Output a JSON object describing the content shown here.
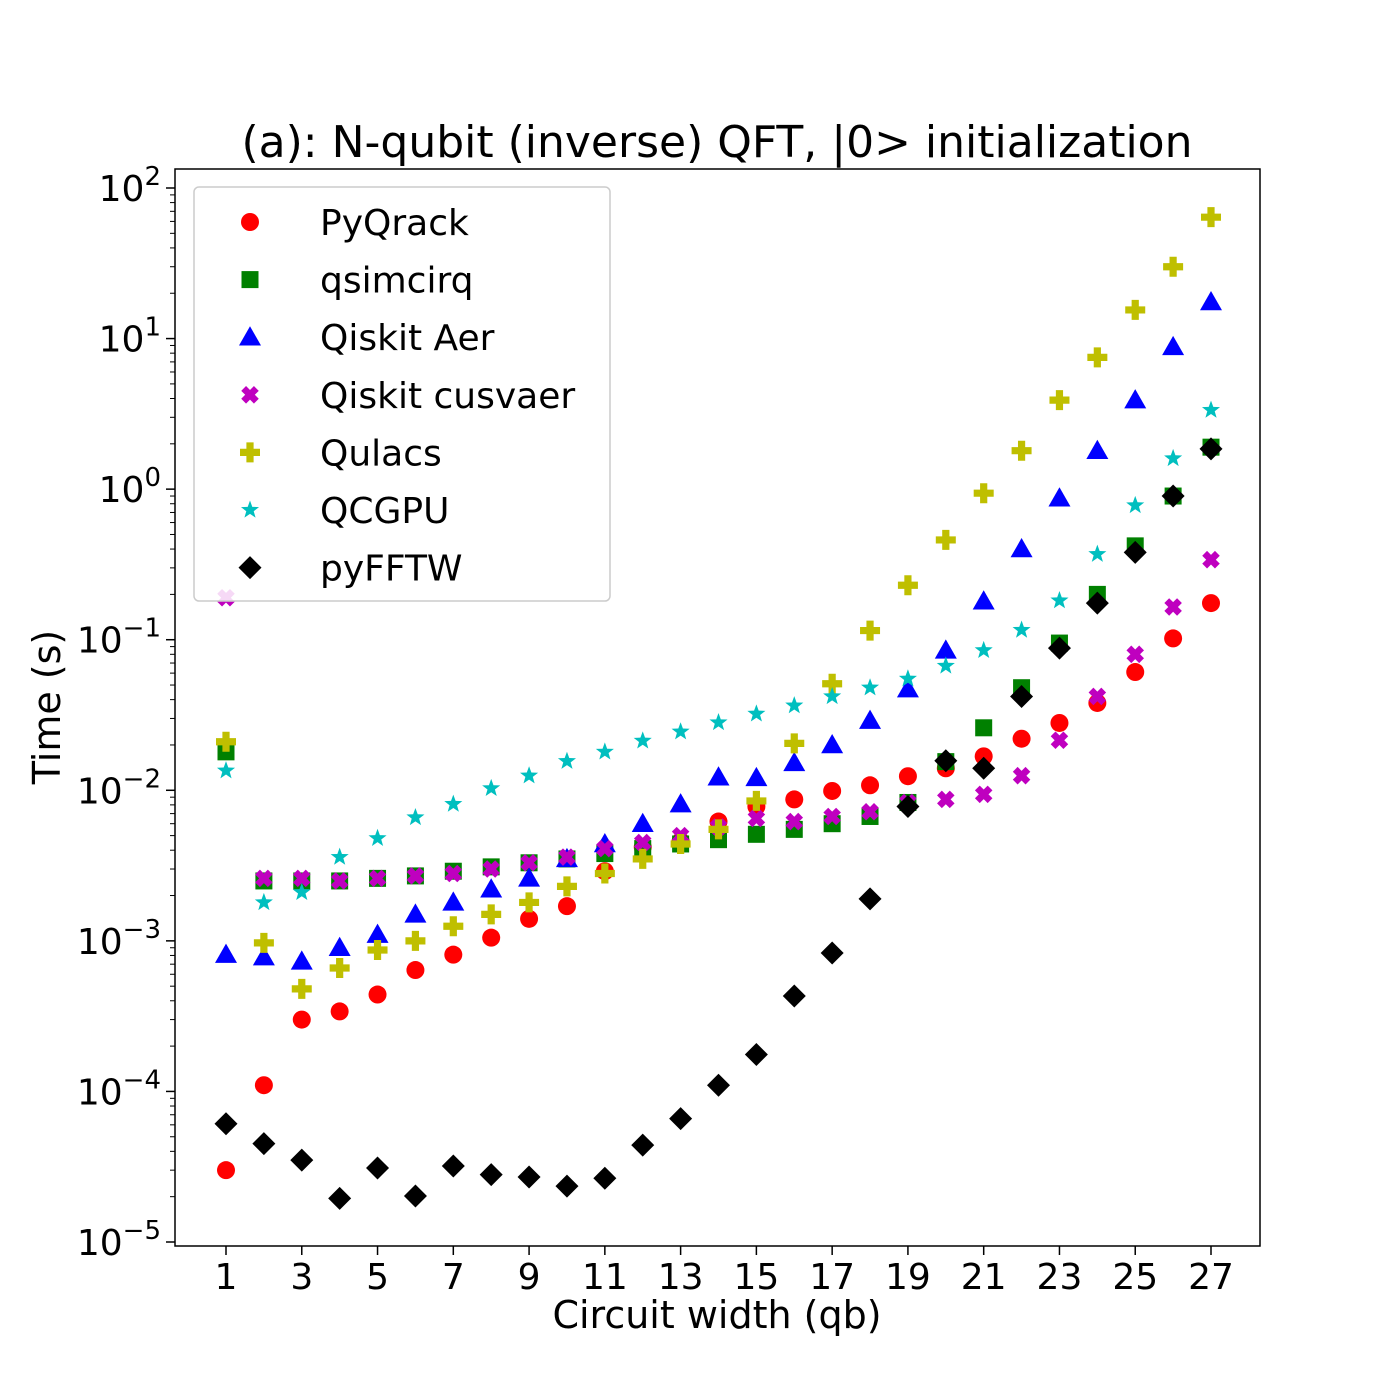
{
  "chart_data": {
    "type": "scatter",
    "title": "(a): N-qubit (inverse) QFT, |0> initialization",
    "xlabel": "Circuit width (qb)",
    "ylabel": "Time (s)",
    "yscale": "log",
    "xlim": [
      0.3,
      28.3
    ],
    "ylim": [
      1e-05,
      150
    ],
    "x_ticks": [
      "1",
      "3",
      "5",
      "7",
      "9",
      "11",
      "13",
      "15",
      "17",
      "19",
      "21",
      "23",
      "25",
      "27"
    ],
    "y_ticks": [
      {
        "base": "10",
        "exp": "−5",
        "value": 1e-05
      },
      {
        "base": "10",
        "exp": "−4",
        "value": 0.0001
      },
      {
        "base": "10",
        "exp": "−3",
        "value": 0.001
      },
      {
        "base": "10",
        "exp": "−2",
        "value": 0.01
      },
      {
        "base": "10",
        "exp": "−1",
        "value": 0.1
      },
      {
        "base": "10",
        "exp": "0",
        "value": 1
      },
      {
        "base": "10",
        "exp": "1",
        "value": 10
      },
      {
        "base": "10",
        "exp": "2",
        "value": 100
      }
    ],
    "grid": false,
    "legend_position": "upper-left",
    "series": [
      {
        "name": "PyQrack",
        "marker": "circle",
        "color": "#ff0000",
        "x": [
          1,
          2,
          3,
          4,
          5,
          6,
          7,
          8,
          9,
          10,
          11,
          12,
          13,
          14,
          15,
          16,
          17,
          18,
          19,
          20,
          21,
          22,
          23,
          24,
          25,
          26,
          27
        ],
        "y": [
          3e-05,
          0.00011,
          0.0003,
          0.00034,
          0.00044,
          0.00064,
          0.00081,
          0.00105,
          0.0014,
          0.0017,
          0.0029,
          0.0042,
          0.0046,
          0.0062,
          0.0078,
          0.0087,
          0.0099,
          0.0108,
          0.0124,
          0.014,
          0.0168,
          0.022,
          0.028,
          0.038,
          0.061,
          0.102,
          0.175
        ]
      },
      {
        "name": "qsimcirq",
        "marker": "square",
        "color": "#008000",
        "x": [
          1,
          2,
          3,
          4,
          5,
          6,
          7,
          8,
          9,
          10,
          11,
          12,
          13,
          14,
          15,
          16,
          17,
          18,
          19,
          20,
          21,
          22,
          23,
          24,
          25,
          26,
          27
        ],
        "y": [
          0.018,
          0.0025,
          0.0025,
          0.0025,
          0.0026,
          0.0027,
          0.0029,
          0.0031,
          0.0033,
          0.0035,
          0.0038,
          0.0041,
          0.0044,
          0.0047,
          0.0051,
          0.0055,
          0.006,
          0.0067,
          0.0083,
          0.0155,
          0.026,
          0.048,
          0.095,
          0.2,
          0.42,
          0.9,
          1.9
        ]
      },
      {
        "name": "Qiskit Aer",
        "marker": "triangle",
        "color": "#0000ff",
        "x": [
          1,
          2,
          3,
          4,
          5,
          6,
          7,
          8,
          9,
          10,
          11,
          12,
          13,
          14,
          15,
          16,
          17,
          18,
          19,
          20,
          21,
          22,
          23,
          24,
          25,
          26,
          27
        ],
        "y": [
          0.00081,
          0.00078,
          0.00073,
          0.0009,
          0.0011,
          0.0015,
          0.0018,
          0.0022,
          0.0026,
          0.0035,
          0.0044,
          0.006,
          0.0081,
          0.0122,
          0.0121,
          0.0152,
          0.02,
          0.029,
          0.047,
          0.085,
          0.18,
          0.4,
          0.87,
          1.8,
          3.9,
          8.8,
          17.5
        ]
      },
      {
        "name": "Qiskit cusvaer",
        "marker": "x",
        "color": "#bf00bf",
        "x": [
          1,
          2,
          3,
          4,
          5,
          6,
          7,
          8,
          9,
          10,
          11,
          12,
          13,
          14,
          15,
          16,
          17,
          18,
          19,
          20,
          21,
          22,
          23,
          24,
          25,
          26,
          27
        ],
        "y": [
          0.19,
          0.0026,
          0.0026,
          0.0025,
          0.0026,
          0.0027,
          0.0028,
          0.003,
          0.0033,
          0.0036,
          0.0041,
          0.0045,
          0.005,
          0.0057,
          0.0065,
          0.0062,
          0.0067,
          0.0072,
          0.0083,
          0.0087,
          0.0094,
          0.0125,
          0.0215,
          0.042,
          0.08,
          0.165,
          0.34
        ]
      },
      {
        "name": "Qulacs",
        "marker": "plus",
        "color": "#bfbf00",
        "x": [
          1,
          2,
          3,
          4,
          5,
          6,
          7,
          8,
          9,
          10,
          11,
          12,
          13,
          14,
          15,
          16,
          17,
          18,
          19,
          20,
          21,
          22,
          23,
          24,
          25,
          26,
          27
        ],
        "y": [
          0.021,
          0.00097,
          0.00048,
          0.00066,
          0.00087,
          0.001,
          0.00125,
          0.0015,
          0.0018,
          0.0023,
          0.0028,
          0.0035,
          0.0044,
          0.0055,
          0.0085,
          0.0205,
          0.051,
          0.115,
          0.23,
          0.46,
          0.94,
          1.8,
          3.9,
          7.5,
          15.5,
          30,
          64
        ]
      },
      {
        "name": "QCGPU",
        "marker": "star",
        "color": "#00bfbf",
        "x": [
          1,
          2,
          3,
          4,
          5,
          6,
          7,
          8,
          9,
          10,
          11,
          12,
          13,
          14,
          15,
          16,
          17,
          18,
          19,
          20,
          21,
          22,
          23,
          24,
          25,
          26,
          27
        ],
        "y": [
          0.0135,
          0.0018,
          0.0021,
          0.0036,
          0.0048,
          0.0066,
          0.0081,
          0.0103,
          0.0125,
          0.0156,
          0.018,
          0.0213,
          0.0245,
          0.0282,
          0.0322,
          0.0365,
          0.042,
          0.048,
          0.055,
          0.067,
          0.085,
          0.116,
          0.182,
          0.37,
          0.78,
          1.6,
          3.35
        ]
      },
      {
        "name": "pyFFTW",
        "marker": "diamond",
        "color": "#000000",
        "x": [
          1,
          2,
          3,
          4,
          5,
          6,
          7,
          8,
          9,
          10,
          11,
          12,
          13,
          14,
          15,
          16,
          17,
          18,
          19,
          20,
          21,
          22,
          23,
          24,
          25,
          26,
          27
        ],
        "y": [
          6.1e-05,
          4.5e-05,
          3.5e-05,
          1.95e-05,
          3.1e-05,
          2.02e-05,
          3.2e-05,
          2.8e-05,
          2.7e-05,
          2.35e-05,
          2.65e-05,
          4.4e-05,
          6.6e-05,
          0.00011,
          0.000176,
          0.00043,
          0.00083,
          0.0019,
          0.0078,
          0.0157,
          0.014,
          0.042,
          0.088,
          0.175,
          0.38,
          0.9,
          1.85
        ]
      }
    ]
  }
}
